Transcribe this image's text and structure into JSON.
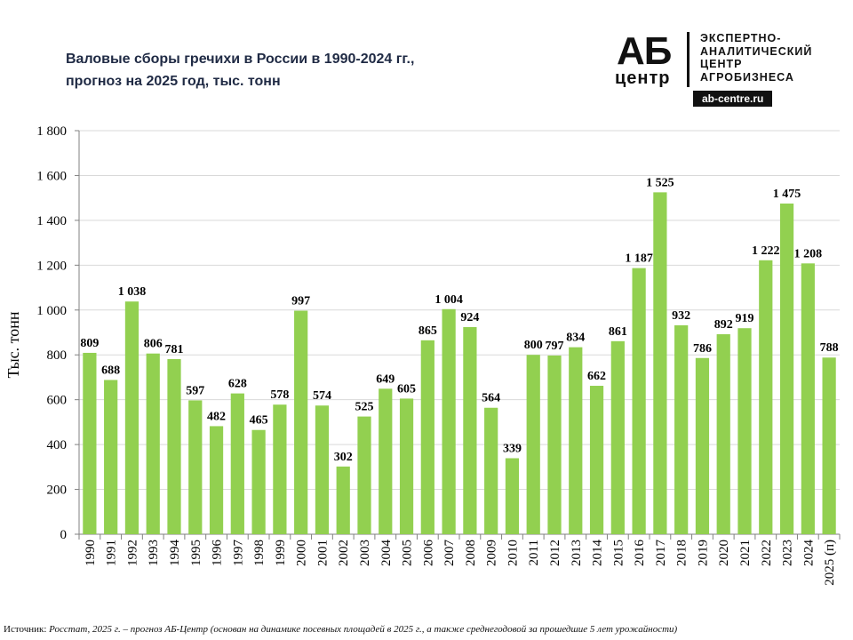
{
  "title": {
    "line1": "Валовые сборы гречихи в России в 1990-2024 гг.,",
    "line2": "прогноз на 2025 год, тыс. тонн"
  },
  "logo": {
    "ab": "АБ",
    "centr": "центр",
    "line1": "ЭКСПЕРТНО-",
    "line2": "АНАЛИТИЧЕСКИЙ",
    "line3": "ЦЕНТР",
    "line4": "АГРОБИЗНЕСА",
    "site": "ab-centre.ru"
  },
  "source": {
    "label": "Источник:",
    "text": "Росстат, 2025 г. – прогноз АБ-Центр (основан на динамике посевных площадей в 2025 г., а также среднегодовой за прошедшие 5 лет урожайности)"
  },
  "colors": {
    "bar": "#92d050",
    "axis": "#808080",
    "grid": "#d9d9d9",
    "text": "#000000"
  },
  "chart_data": {
    "type": "bar",
    "ylabel": "Тыс. тонн",
    "ylim": [
      0,
      1800
    ],
    "yticks": [
      0,
      200,
      400,
      600,
      800,
      1000,
      1200,
      1400,
      1600,
      1800
    ],
    "ytick_labels": [
      "0",
      "200",
      "400",
      "600",
      "800",
      "1 000",
      "1 200",
      "1 400",
      "1 600",
      "1 800"
    ],
    "grid": true,
    "categories": [
      "1990",
      "1991",
      "1992",
      "1993",
      "1994",
      "1995",
      "1996",
      "1997",
      "1998",
      "1999",
      "2000",
      "2001",
      "2002",
      "2003",
      "2004",
      "2005",
      "2006",
      "2007",
      "2008",
      "2009",
      "2010",
      "2011",
      "2012",
      "2013",
      "2014",
      "2015",
      "2016",
      "2017",
      "2018",
      "2019",
      "2020",
      "2021",
      "2022",
      "2023",
      "2024",
      "2025 (п)"
    ],
    "values": [
      809,
      688,
      1038,
      806,
      781,
      597,
      482,
      628,
      465,
      578,
      997,
      574,
      302,
      525,
      649,
      605,
      865,
      1004,
      924,
      564,
      339,
      800,
      797,
      834,
      662,
      861,
      1187,
      1525,
      932,
      786,
      892,
      919,
      1222,
      1475,
      1208,
      788
    ],
    "labels": [
      "809",
      "688",
      "1 038",
      "806",
      "781",
      "597",
      "482",
      "628",
      "465",
      "578",
      "997",
      "574",
      "302",
      "525",
      "649",
      "605",
      "865",
      "1 004",
      "924",
      "564",
      "339",
      "800",
      "797",
      "834",
      "662",
      "861",
      "1 187",
      "1 525",
      "932",
      "786",
      "892",
      "919",
      "1 222",
      "1 475",
      "1 208",
      "788"
    ]
  }
}
